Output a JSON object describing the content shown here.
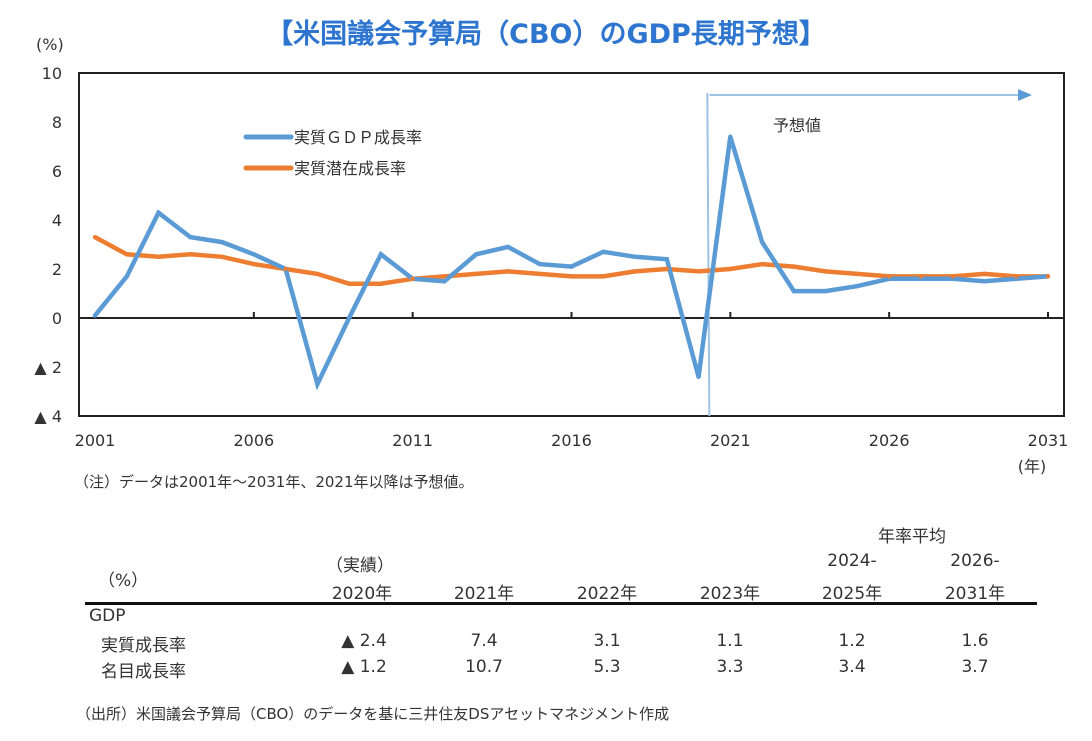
{
  "title": "【米国議会予算局（CBO）のGDP長期予想】",
  "chart_data": {
    "type": "line",
    "title": "【米国議会予算局（CBO）のGDP長期予想】",
    "ylabel": "(%)",
    "xlabel": "(年)",
    "ylim": [
      -4,
      10
    ],
    "xlim": [
      2001,
      2031
    ],
    "yticks": [
      10,
      8,
      6,
      4,
      2,
      0,
      -2,
      -4
    ],
    "ytick_labels": [
      "10",
      "8",
      "6",
      "4",
      "2",
      "0",
      "▲ 2",
      "▲ 4"
    ],
    "xticks": [
      2001,
      2006,
      2011,
      2016,
      2021,
      2026,
      2031
    ],
    "xtick_labels": [
      "2001",
      "2006",
      "2011",
      "2016",
      "2021",
      "2026",
      "2031"
    ],
    "grid": false,
    "legend_position": "upper-left",
    "x": [
      2001,
      2002,
      2003,
      2004,
      2005,
      2006,
      2007,
      2008,
      2009,
      2010,
      2011,
      2012,
      2013,
      2014,
      2015,
      2016,
      2017,
      2018,
      2019,
      2020,
      2021,
      2022,
      2023,
      2024,
      2025,
      2026,
      2027,
      2028,
      2029,
      2030,
      2031
    ],
    "series": [
      {
        "name": "実質ＧＤＰ成長率",
        "color": "#5B9BD5",
        "values": [
          0.1,
          1.7,
          4.3,
          3.3,
          3.1,
          2.6,
          2.0,
          -2.7,
          0.0,
          2.6,
          1.6,
          1.5,
          2.6,
          2.9,
          2.2,
          2.1,
          2.7,
          2.5,
          2.4,
          -2.4,
          7.4,
          3.1,
          1.1,
          1.1,
          1.3,
          1.6,
          1.6,
          1.6,
          1.5,
          1.6,
          1.7
        ]
      },
      {
        "name": "実質潜在成長率",
        "color": "#ED7D31",
        "values": [
          3.3,
          2.6,
          2.5,
          2.6,
          2.5,
          2.2,
          2.0,
          1.8,
          1.4,
          1.4,
          1.6,
          1.7,
          1.8,
          1.9,
          1.8,
          1.7,
          1.7,
          1.9,
          2.0,
          1.9,
          2.0,
          2.2,
          2.1,
          1.9,
          1.8,
          1.7,
          1.7,
          1.7,
          1.8,
          1.7,
          1.7
        ]
      }
    ],
    "annotations": [
      {
        "text": "予想値",
        "type": "forecast-arrow",
        "from_x": 2021,
        "to_x": 2031,
        "color": "#5B9BD5"
      }
    ]
  },
  "note": "（注）データは2001年～2031年、2021年以降は予想値。",
  "table": {
    "unit_label": "（%）",
    "group_header": "年率平均",
    "actual_label": "（実績）",
    "columns": [
      {
        "line1": "",
        "line2": "2020年"
      },
      {
        "line1": "",
        "line2": "2021年"
      },
      {
        "line1": "",
        "line2": "2022年"
      },
      {
        "line1": "",
        "line2": "2023年"
      },
      {
        "line1": "2024-",
        "line2": "2025年"
      },
      {
        "line1": "2026-",
        "line2": "2031年"
      }
    ],
    "section_label": "GDP",
    "rows": [
      {
        "label": "実質成長率",
        "values": [
          "▲ 2.4",
          "7.4",
          "3.1",
          "1.1",
          "1.2",
          "1.6"
        ]
      },
      {
        "label": "名目成長率",
        "values": [
          "▲ 1.2",
          "10.7",
          "5.3",
          "3.3",
          "3.4",
          "3.7"
        ]
      }
    ]
  },
  "source": "（出所）米国議会予算局（CBO）のデータを基に三井住友DSアセットマネジメント作成"
}
